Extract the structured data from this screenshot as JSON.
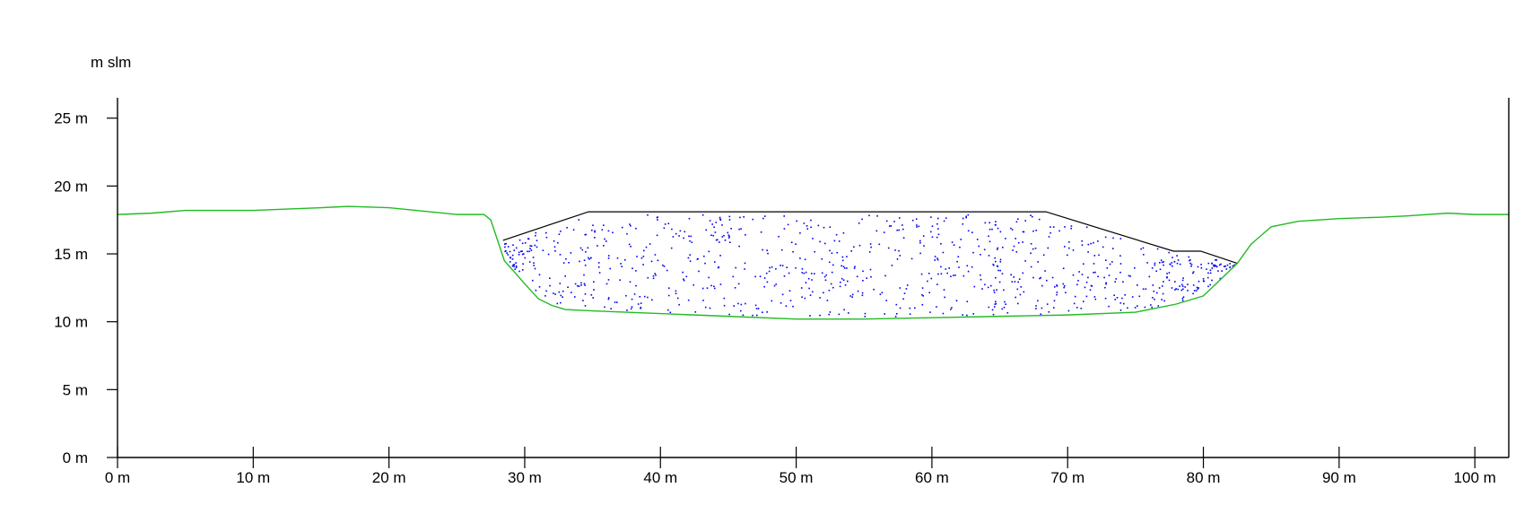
{
  "chart_data": {
    "type": "area",
    "title": "",
    "ylabel": "m slm",
    "xlabel": "",
    "xlim": [
      0,
      102.5
    ],
    "ylim": [
      0,
      26.5
    ],
    "x_ticks": [
      0,
      10,
      20,
      30,
      40,
      50,
      60,
      70,
      80,
      90,
      100
    ],
    "x_tick_labels": [
      "0 m",
      "10 m",
      "20 m",
      "30 m",
      "40 m",
      "50 m",
      "60 m",
      "70 m",
      "80 m",
      "90 m",
      "100 m"
    ],
    "y_ticks": [
      0,
      5,
      10,
      15,
      20,
      25
    ],
    "y_tick_labels": [
      "0 m",
      "5 m",
      "10 m",
      "15 m",
      "20 m",
      "25 m"
    ],
    "grid": false,
    "colors": {
      "ground": "#22bb22",
      "fill_outline": "#000000",
      "fill_dots": "#0000ee"
    },
    "series": [
      {
        "values_x": [
          0,
          2.5,
          5,
          10,
          15,
          17,
          20,
          22,
          25,
          27,
          27.5,
          28,
          28.5,
          30,
          31,
          32,
          33,
          35,
          40,
          45,
          50,
          55,
          60,
          65,
          70,
          75,
          78,
          80,
          82.5,
          83.5,
          85,
          87,
          90,
          93,
          95,
          98,
          100,
          102.5
        ],
        "values_y": [
          17.9,
          18.0,
          18.2,
          18.2,
          18.4,
          18.5,
          18.4,
          18.2,
          17.9,
          17.9,
          17.5,
          16.0,
          14.5,
          12.8,
          11.7,
          11.2,
          10.9,
          10.8,
          10.6,
          10.4,
          10.2,
          10.2,
          10.3,
          10.4,
          10.5,
          10.7,
          11.3,
          11.9,
          14.3,
          15.7,
          17.0,
          17.4,
          17.6,
          17.7,
          17.8,
          18.0,
          17.9,
          17.9
        ]
      },
      {
        "values_x": [
          28.4,
          34.7,
          68.4,
          77.8,
          79.8,
          82.5
        ],
        "values_y": [
          16.0,
          18.1,
          18.1,
          15.2,
          15.2,
          14.3
        ]
      }
    ]
  }
}
